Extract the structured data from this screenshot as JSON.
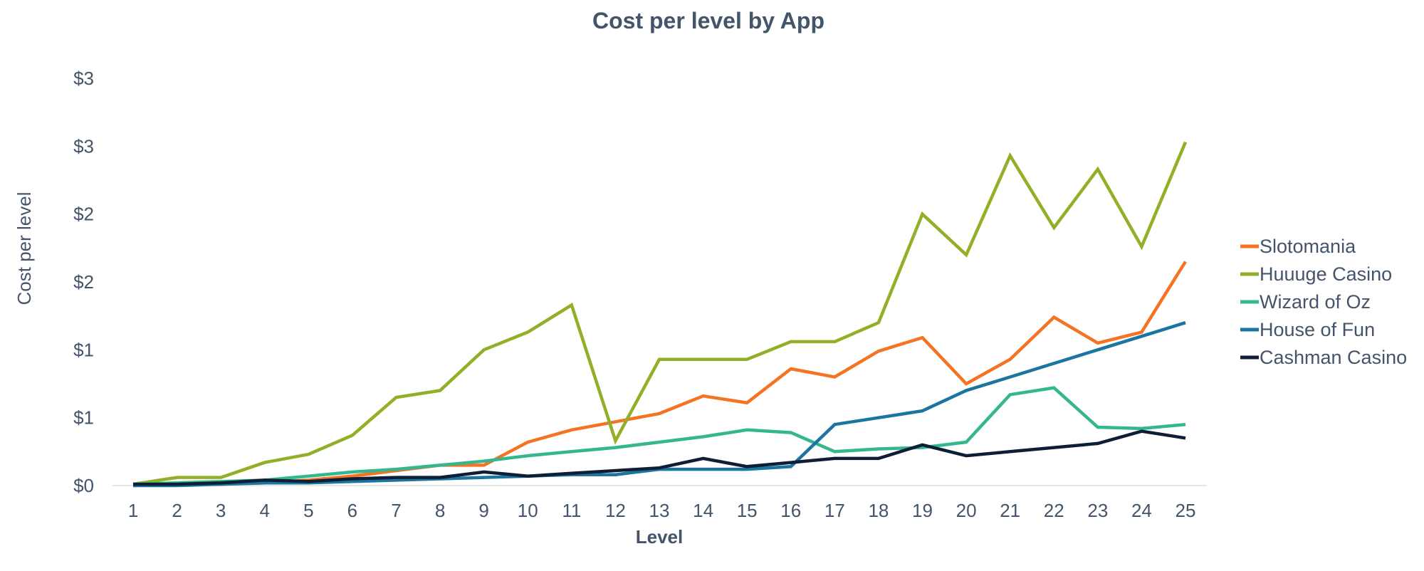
{
  "chart_data": {
    "type": "line",
    "title": "Cost per level by App",
    "xlabel": "Level",
    "ylabel": "Cost per level",
    "categories": [
      "1",
      "2",
      "3",
      "4",
      "5",
      "6",
      "7",
      "8",
      "9",
      "10",
      "11",
      "12",
      "13",
      "14",
      "15",
      "16",
      "17",
      "18",
      "19",
      "20",
      "21",
      "22",
      "23",
      "24",
      "25"
    ],
    "ylim": [
      0,
      3.0
    ],
    "yticks": [
      0,
      0.5,
      1.0,
      1.5,
      2.0,
      2.5,
      3.0
    ],
    "ytick_labels": [
      "$0",
      "$1",
      "$1",
      "$2",
      "$2",
      "$3",
      "$3"
    ],
    "grid": false,
    "legend_position": "right",
    "series": [
      {
        "name": "Slotomania",
        "color": "#f47424",
        "values": [
          0.0,
          0.01,
          0.01,
          0.02,
          0.04,
          0.07,
          0.11,
          0.15,
          0.15,
          0.32,
          0.41,
          0.47,
          0.53,
          0.66,
          0.61,
          0.86,
          0.8,
          0.99,
          1.09,
          0.75,
          0.93,
          1.24,
          1.05,
          1.13,
          1.65
        ]
      },
      {
        "name": "Huuuge Casino",
        "color": "#92b027",
        "values": [
          0.01,
          0.06,
          0.06,
          0.17,
          0.23,
          0.37,
          0.65,
          0.7,
          1.0,
          1.13,
          1.33,
          0.33,
          0.93,
          0.93,
          0.93,
          1.06,
          1.06,
          1.2,
          2.0,
          1.7,
          2.43,
          1.9,
          2.33,
          1.76,
          2.53
        ]
      },
      {
        "name": "Wizard of Oz",
        "color": "#34b68f",
        "values": [
          0.01,
          0.02,
          0.03,
          0.04,
          0.07,
          0.1,
          0.12,
          0.15,
          0.18,
          0.22,
          0.25,
          0.28,
          0.32,
          0.36,
          0.41,
          0.39,
          0.25,
          0.27,
          0.28,
          0.32,
          0.67,
          0.72,
          0.43,
          0.42,
          0.45
        ]
      },
      {
        "name": "House of Fun",
        "color": "#1b75a0",
        "values": [
          0.0,
          0.0,
          0.01,
          0.02,
          0.02,
          0.03,
          0.04,
          0.05,
          0.06,
          0.07,
          0.08,
          0.08,
          0.12,
          0.12,
          0.12,
          0.14,
          0.45,
          0.5,
          0.55,
          0.7,
          0.8,
          0.9,
          1.0,
          1.1,
          1.2
        ]
      },
      {
        "name": "Cashman Casino",
        "color": "#0e1e35",
        "values": [
          0.01,
          0.01,
          0.02,
          0.04,
          0.03,
          0.05,
          0.06,
          0.06,
          0.1,
          0.07,
          0.09,
          0.11,
          0.13,
          0.2,
          0.14,
          0.17,
          0.2,
          0.2,
          0.3,
          0.22,
          0.25,
          0.28,
          0.31,
          0.4,
          0.35
        ]
      }
    ]
  }
}
